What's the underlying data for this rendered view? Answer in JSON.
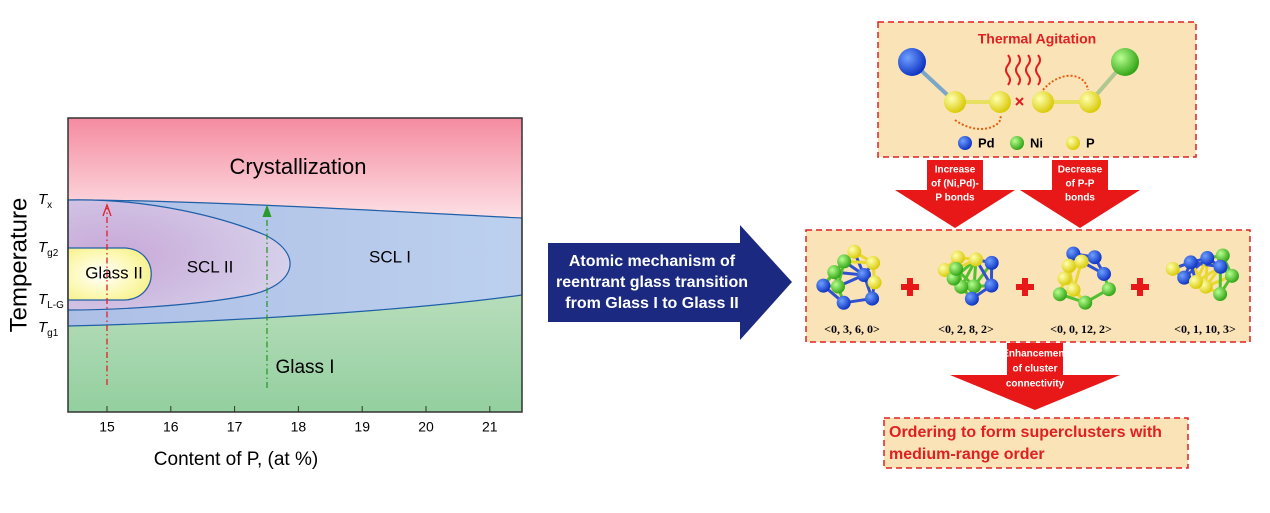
{
  "phase_diagram": {
    "regions": [
      "Crystallization",
      "Glass II",
      "SCL II",
      "SCL I",
      "Glass I"
    ],
    "x_axis": {
      "label": "Content of P, (at %)",
      "ticks": [
        15,
        16,
        17,
        18,
        19,
        20,
        21
      ]
    },
    "y_axis": {
      "label": "Temperature",
      "ticks": [
        {
          "symbol": "T",
          "subscript": "x"
        },
        {
          "symbol": "T",
          "subscript": "g2"
        },
        {
          "symbol": "T",
          "subscript": "L-G"
        },
        {
          "symbol": "T",
          "subscript": "g1"
        }
      ]
    }
  },
  "mechanism_arrow": {
    "lines": [
      "Atomic mechanism of",
      "reentrant glass transition",
      "from Glass I to Glass II"
    ]
  },
  "thermal_box": {
    "title": "Thermal Agitation",
    "legend": [
      "Pd",
      "Ni",
      "P"
    ]
  },
  "arrows": [
    {
      "lines": [
        "Increase",
        "of (Ni,Pd)-",
        "P bonds"
      ]
    },
    {
      "lines": [
        "Decrease",
        "of P-P",
        "bonds"
      ]
    }
  ],
  "clusters": [
    "<0, 3, 6, 0>",
    "<0, 2, 8, 2>",
    "<0, 0, 12, 2>",
    "<0, 1, 10, 3>"
  ],
  "connectivity_arrow": {
    "lines": [
      "Enhancement",
      "of cluster",
      "connectivity"
    ]
  },
  "result_box": {
    "lines": [
      "Ordering to form superclusters with",
      "medium-range order"
    ]
  }
}
